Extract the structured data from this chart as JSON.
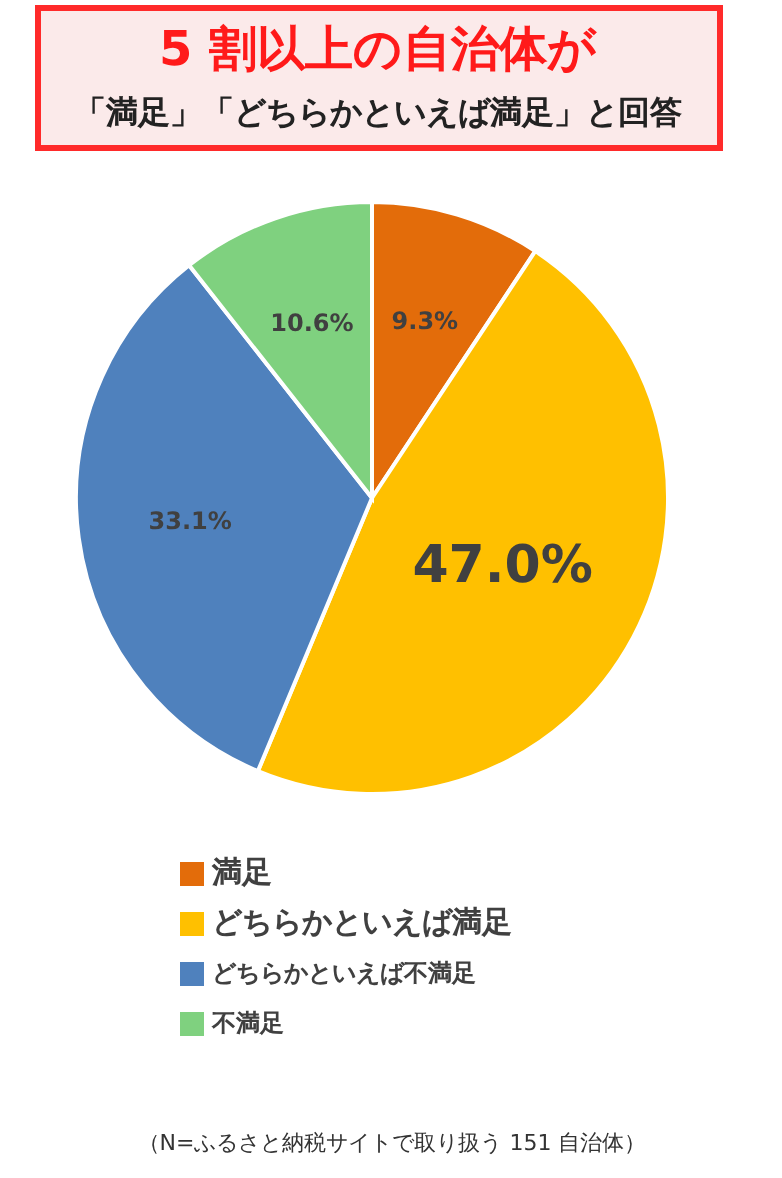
{
  "chart_data": {
    "type": "pie",
    "title": "5 割以上の自治体が",
    "subtitle": "「満足」「どちらかといえば満足」と回答",
    "categories": [
      "満足",
      "どちらかといえば満足",
      "どちらかといえば不満足",
      "不満足"
    ],
    "values": [
      9.3,
      47.0,
      33.1,
      10.6
    ],
    "value_labels": [
      "9.3%",
      "47.0%",
      "33.1%",
      "10.6%"
    ],
    "colors": [
      "#e36c0a",
      "#ffc000",
      "#4f81bd",
      "#7fd17f"
    ],
    "legend": "bottom",
    "annotations": [
      "（N=ふるさと納税サイトで取り扱う 151 自治体）"
    ]
  }
}
